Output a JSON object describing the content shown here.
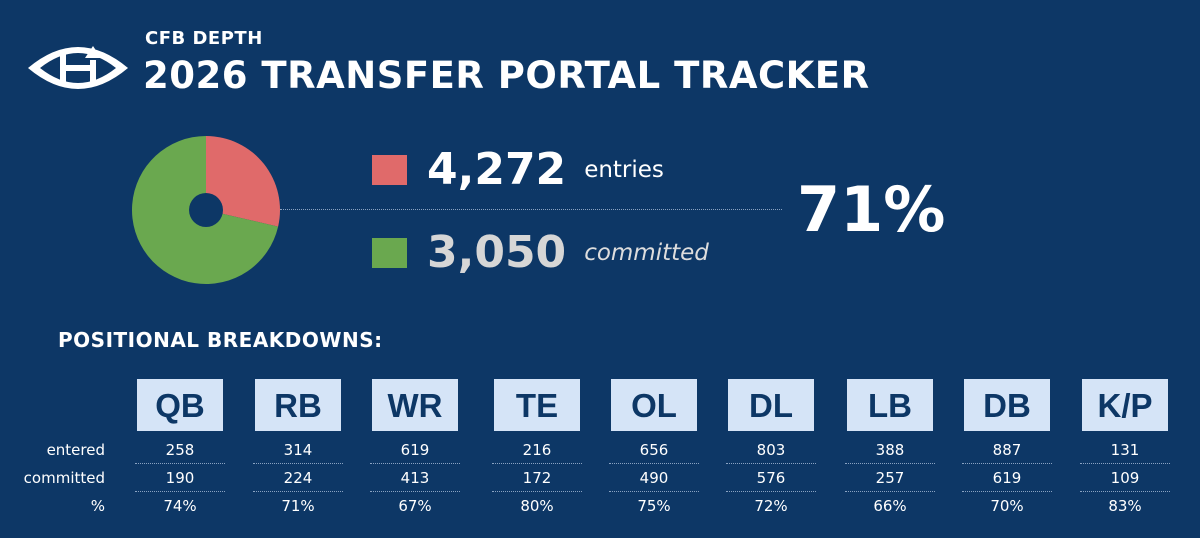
{
  "header": {
    "brand": "CFB DEPTH",
    "title": "2026 TRANSFER PORTAL TRACKER"
  },
  "colors": {
    "background": "#0d3766",
    "entries": "#e06a6a",
    "committed": "#6aa84f",
    "position_box": "#d5e4f7"
  },
  "summary": {
    "entries_value": "4,272",
    "entries_label": "entries",
    "committed_value": "3,050",
    "committed_label": "committed",
    "percent": "71%"
  },
  "positional": {
    "heading": "POSITIONAL BREAKDOWNS:",
    "row_labels": {
      "entered": "entered",
      "committed": "committed",
      "pct": "%"
    }
  },
  "chart_data": [
    {
      "type": "pie",
      "labels": [
        "entries",
        "committed"
      ],
      "values": [
        1222,
        3050
      ],
      "colors": [
        "#e06a6a",
        "#6aa84f"
      ]
    },
    {
      "type": "table",
      "columns": [
        "QB",
        "RB",
        "WR",
        "TE",
        "OL",
        "DL",
        "LB",
        "DB",
        "K/P"
      ],
      "rows": {
        "entered": [
          "258",
          "314",
          "619",
          "216",
          "656",
          "803",
          "388",
          "887",
          "131"
        ],
        "committed": [
          "190",
          "224",
          "413",
          "172",
          "490",
          "576",
          "257",
          "619",
          "109"
        ],
        "pct": [
          "74%",
          "71%",
          "67%",
          "80%",
          "75%",
          "72%",
          "66%",
          "70%",
          "83%"
        ]
      }
    }
  ]
}
